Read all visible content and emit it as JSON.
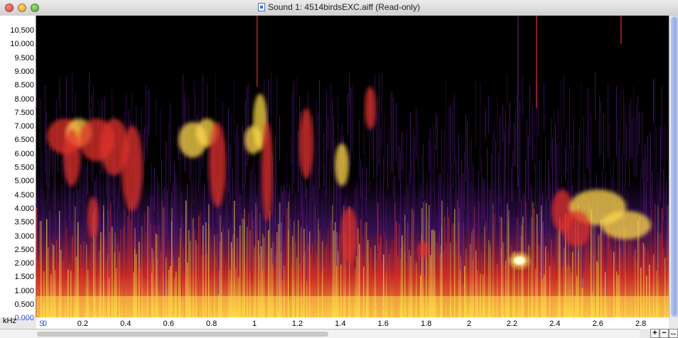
{
  "window": {
    "title": "Sound 1: 4514birdsEXC.aiff (Read-only)",
    "icon": "document-icon"
  },
  "spectrogram": {
    "y_unit": "kHz",
    "y_ticks": [
      "10.500",
      "10.000",
      "9.500",
      "9.000",
      "8.500",
      "8.000",
      "7.500",
      "7.000",
      "6.500",
      "6.000",
      "5.500",
      "5.000",
      "4.500",
      "4.000",
      "3.500",
      "3.000",
      "2.500",
      "2.000",
      "1.500",
      "1.000",
      "0.500",
      "0.000"
    ],
    "x_unit": "S",
    "x_ticks": [
      "0",
      "0.2",
      "0.4",
      "0.6",
      "0.8",
      "1",
      "1.2",
      "1.4",
      "1.6",
      "1.8",
      "2",
      "2.2",
      "2.4",
      "2.6",
      "2.8"
    ],
    "colors": {
      "background": "#000000",
      "low": "#5a1a8a",
      "mid": "#e0302a",
      "high": "#ffd84a",
      "peak": "#ffffe0"
    }
  },
  "zoom": {
    "in_label": "+",
    "out_label": "−",
    "fit_label": "↔"
  }
}
